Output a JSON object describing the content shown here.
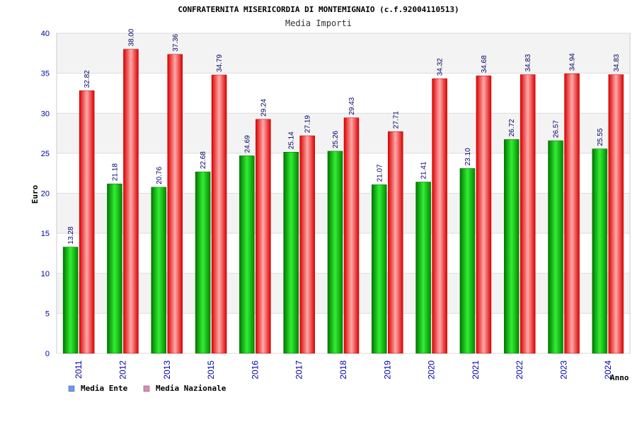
{
  "chart_data": {
    "type": "bar",
    "title": "CONFRATERNITA MISERICORDIA DI MONTEMIGNAIO (c.f.92004110513)",
    "subtitle": "Media Importi",
    "xlabel": "Anno",
    "ylabel": "Euro",
    "ylim": [
      0,
      40
    ],
    "yticks": [
      0,
      5,
      10,
      15,
      20,
      25,
      30,
      35,
      40
    ],
    "grid": true,
    "legend_position": "bottom-left",
    "categories": [
      "2011",
      "2012",
      "2013",
      "2015",
      "2016",
      "2017",
      "2018",
      "2019",
      "2020",
      "2021",
      "2022",
      "2023",
      "2024"
    ],
    "series": [
      {
        "name": "Media Ente",
        "color": "#00bb00",
        "legend_color": "#6699ff",
        "values": [
          13.28,
          21.18,
          20.76,
          22.68,
          24.69,
          25.14,
          25.26,
          21.07,
          21.41,
          23.1,
          26.72,
          26.57,
          25.55
        ],
        "labels": [
          "13.28",
          "21.18",
          "20.76",
          "22.68",
          "24.69",
          "25.14",
          "25.26",
          "21.07",
          "21.41",
          "23.10",
          "26.72",
          "26.57",
          "25.55"
        ]
      },
      {
        "name": "Media Nazionale",
        "color": "#ee0000",
        "legend_color": "#dd88bb",
        "values": [
          32.82,
          38.0,
          37.36,
          34.79,
          29.24,
          27.19,
          29.43,
          27.71,
          34.32,
          34.68,
          34.83,
          34.94,
          34.83
        ],
        "labels": [
          "32.82",
          "38.00",
          "37.36",
          "34.79",
          "29.24",
          "27.19",
          "29.43",
          "27.71",
          "34.32",
          "34.68",
          "34.83",
          "34.94",
          "34.83"
        ]
      }
    ]
  }
}
